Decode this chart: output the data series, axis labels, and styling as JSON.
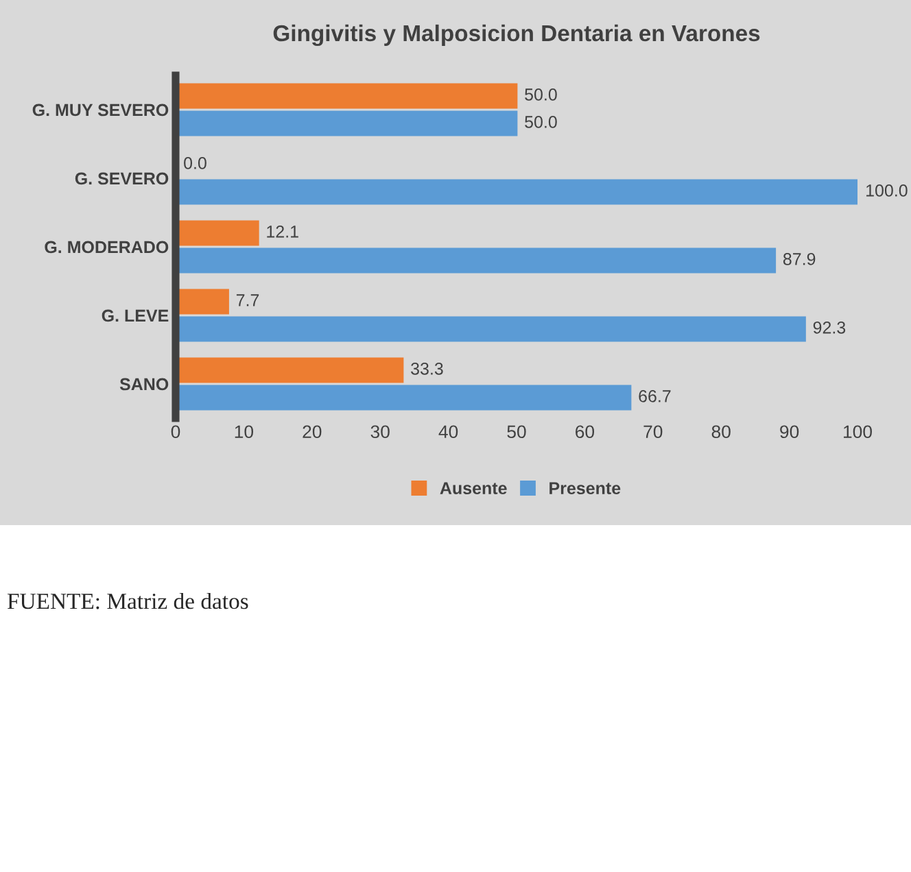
{
  "chart_data": {
    "type": "bar",
    "orientation": "horizontal",
    "title": "Gingivitis y Malposicion Dentaria en Varones",
    "categories": [
      "G. MUY SEVERO",
      "G. SEVERO",
      "G. MODERADO",
      "G. LEVE",
      "SANO"
    ],
    "series": [
      {
        "name": "Ausente",
        "color": "#ed7d31",
        "values": [
          50.0,
          0.0,
          12.1,
          7.7,
          33.3
        ],
        "value_labels": [
          "50.0",
          "0.0",
          "12.1",
          "7.7",
          "33.3"
        ]
      },
      {
        "name": "Presente",
        "color": "#5b9bd5",
        "values": [
          50.0,
          100.0,
          87.9,
          92.3,
          66.7
        ],
        "value_labels": [
          "50.0",
          "100.0",
          "87.9",
          "92.3",
          "66.7"
        ]
      }
    ],
    "xlim": [
      0,
      100
    ],
    "xticks": [
      0,
      10,
      20,
      30,
      40,
      50,
      60,
      70,
      80,
      90,
      100
    ],
    "grid": false,
    "legend": "bottom",
    "annotations": [
      "FUENTE: Matriz de datos"
    ]
  }
}
